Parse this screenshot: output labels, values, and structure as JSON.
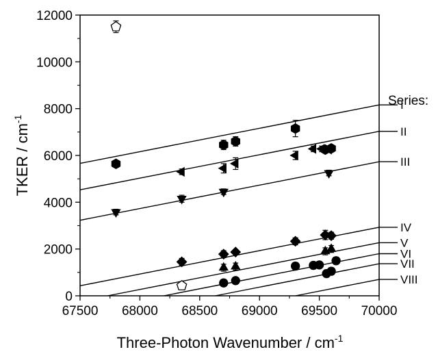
{
  "chart_data": {
    "type": "scatter",
    "xlabel": "Three-Photon Wavenumber / cm",
    "xlabel_sup": "-1",
    "ylabel": "TKER / cm",
    "ylabel_sup": "-1",
    "xlim": [
      67500,
      70000
    ],
    "ylim": [
      0,
      12000
    ],
    "x_ticks": [
      67500,
      68000,
      68500,
      69000,
      69500,
      70000
    ],
    "y_ticks": [
      0,
      2000,
      4000,
      6000,
      8000,
      10000,
      12000
    ],
    "grid": false,
    "series_header": "Series:",
    "lines": [
      {
        "name": "I",
        "x": [
          67500,
          70000
        ],
        "y": [
          5660,
          8160
        ]
      },
      {
        "name": "II",
        "x": [
          67500,
          70000
        ],
        "y": [
          4530,
          7030
        ]
      },
      {
        "name": "III",
        "x": [
          67500,
          70000
        ],
        "y": [
          3230,
          5730
        ]
      },
      {
        "name": "IV",
        "x": [
          67500,
          70000
        ],
        "y": [
          430,
          2930
        ]
      },
      {
        "name": "V",
        "x": [
          67730,
          70000
        ],
        "y": [
          0,
          2270
        ]
      },
      {
        "name": "VI",
        "x": [
          68200,
          70000
        ],
        "y": [
          0,
          1800
        ]
      },
      {
        "name": "VII",
        "x": [
          68630,
          70000
        ],
        "y": [
          0,
          1370
        ]
      },
      {
        "name": "VIII",
        "x": [
          69300,
          70000
        ],
        "y": [
          0,
          700
        ]
      }
    ],
    "series": [
      {
        "marker": "hexagon",
        "filled": true,
        "points": [
          [
            67800,
            5640,
            150
          ],
          [
            68700,
            6450,
            200
          ],
          [
            68800,
            6600,
            200
          ],
          [
            69300,
            7150,
            350
          ],
          [
            69550,
            6250,
            150
          ],
          [
            69600,
            6300,
            150
          ]
        ]
      },
      {
        "marker": "triangle-left",
        "filled": true,
        "points": [
          [
            68350,
            5300,
            120
          ],
          [
            68700,
            5450,
            200
          ],
          [
            68800,
            5650,
            250
          ],
          [
            69300,
            6000,
            180
          ],
          [
            69450,
            6280,
            120
          ],
          [
            69520,
            6280,
            120
          ],
          [
            69580,
            6250,
            120
          ]
        ]
      },
      {
        "marker": "triangle-down",
        "filled": true,
        "points": [
          [
            67800,
            3580,
            120
          ],
          [
            68350,
            4150,
            150
          ],
          [
            68700,
            4450,
            120
          ],
          [
            69580,
            5250,
            120
          ]
        ]
      },
      {
        "marker": "diamond",
        "filled": true,
        "points": [
          [
            68350,
            1450,
            150
          ],
          [
            68700,
            1780,
            150
          ],
          [
            68800,
            1870,
            100
          ],
          [
            69300,
            2330,
            150
          ],
          [
            69550,
            2600,
            200
          ],
          [
            69600,
            2570,
            150
          ]
        ]
      },
      {
        "marker": "triangle-up",
        "filled": true,
        "points": [
          [
            68700,
            1200,
            150
          ],
          [
            68800,
            1250,
            150
          ],
          [
            69550,
            1900,
            150
          ],
          [
            69600,
            2000,
            150
          ]
        ]
      },
      {
        "marker": "circle",
        "filled": true,
        "points": [
          [
            68700,
            550,
            150
          ],
          [
            68800,
            650,
            100
          ],
          [
            69300,
            1270,
            150
          ],
          [
            69450,
            1300,
            150
          ],
          [
            69500,
            1320,
            120
          ],
          [
            69560,
            950,
            150
          ],
          [
            69600,
            1050,
            150
          ],
          [
            69640,
            1500,
            150
          ]
        ]
      },
      {
        "marker": "pentagon",
        "filled": false,
        "points": [
          [
            67800,
            11500,
            250
          ],
          [
            68350,
            430,
            100
          ]
        ]
      }
    ]
  }
}
